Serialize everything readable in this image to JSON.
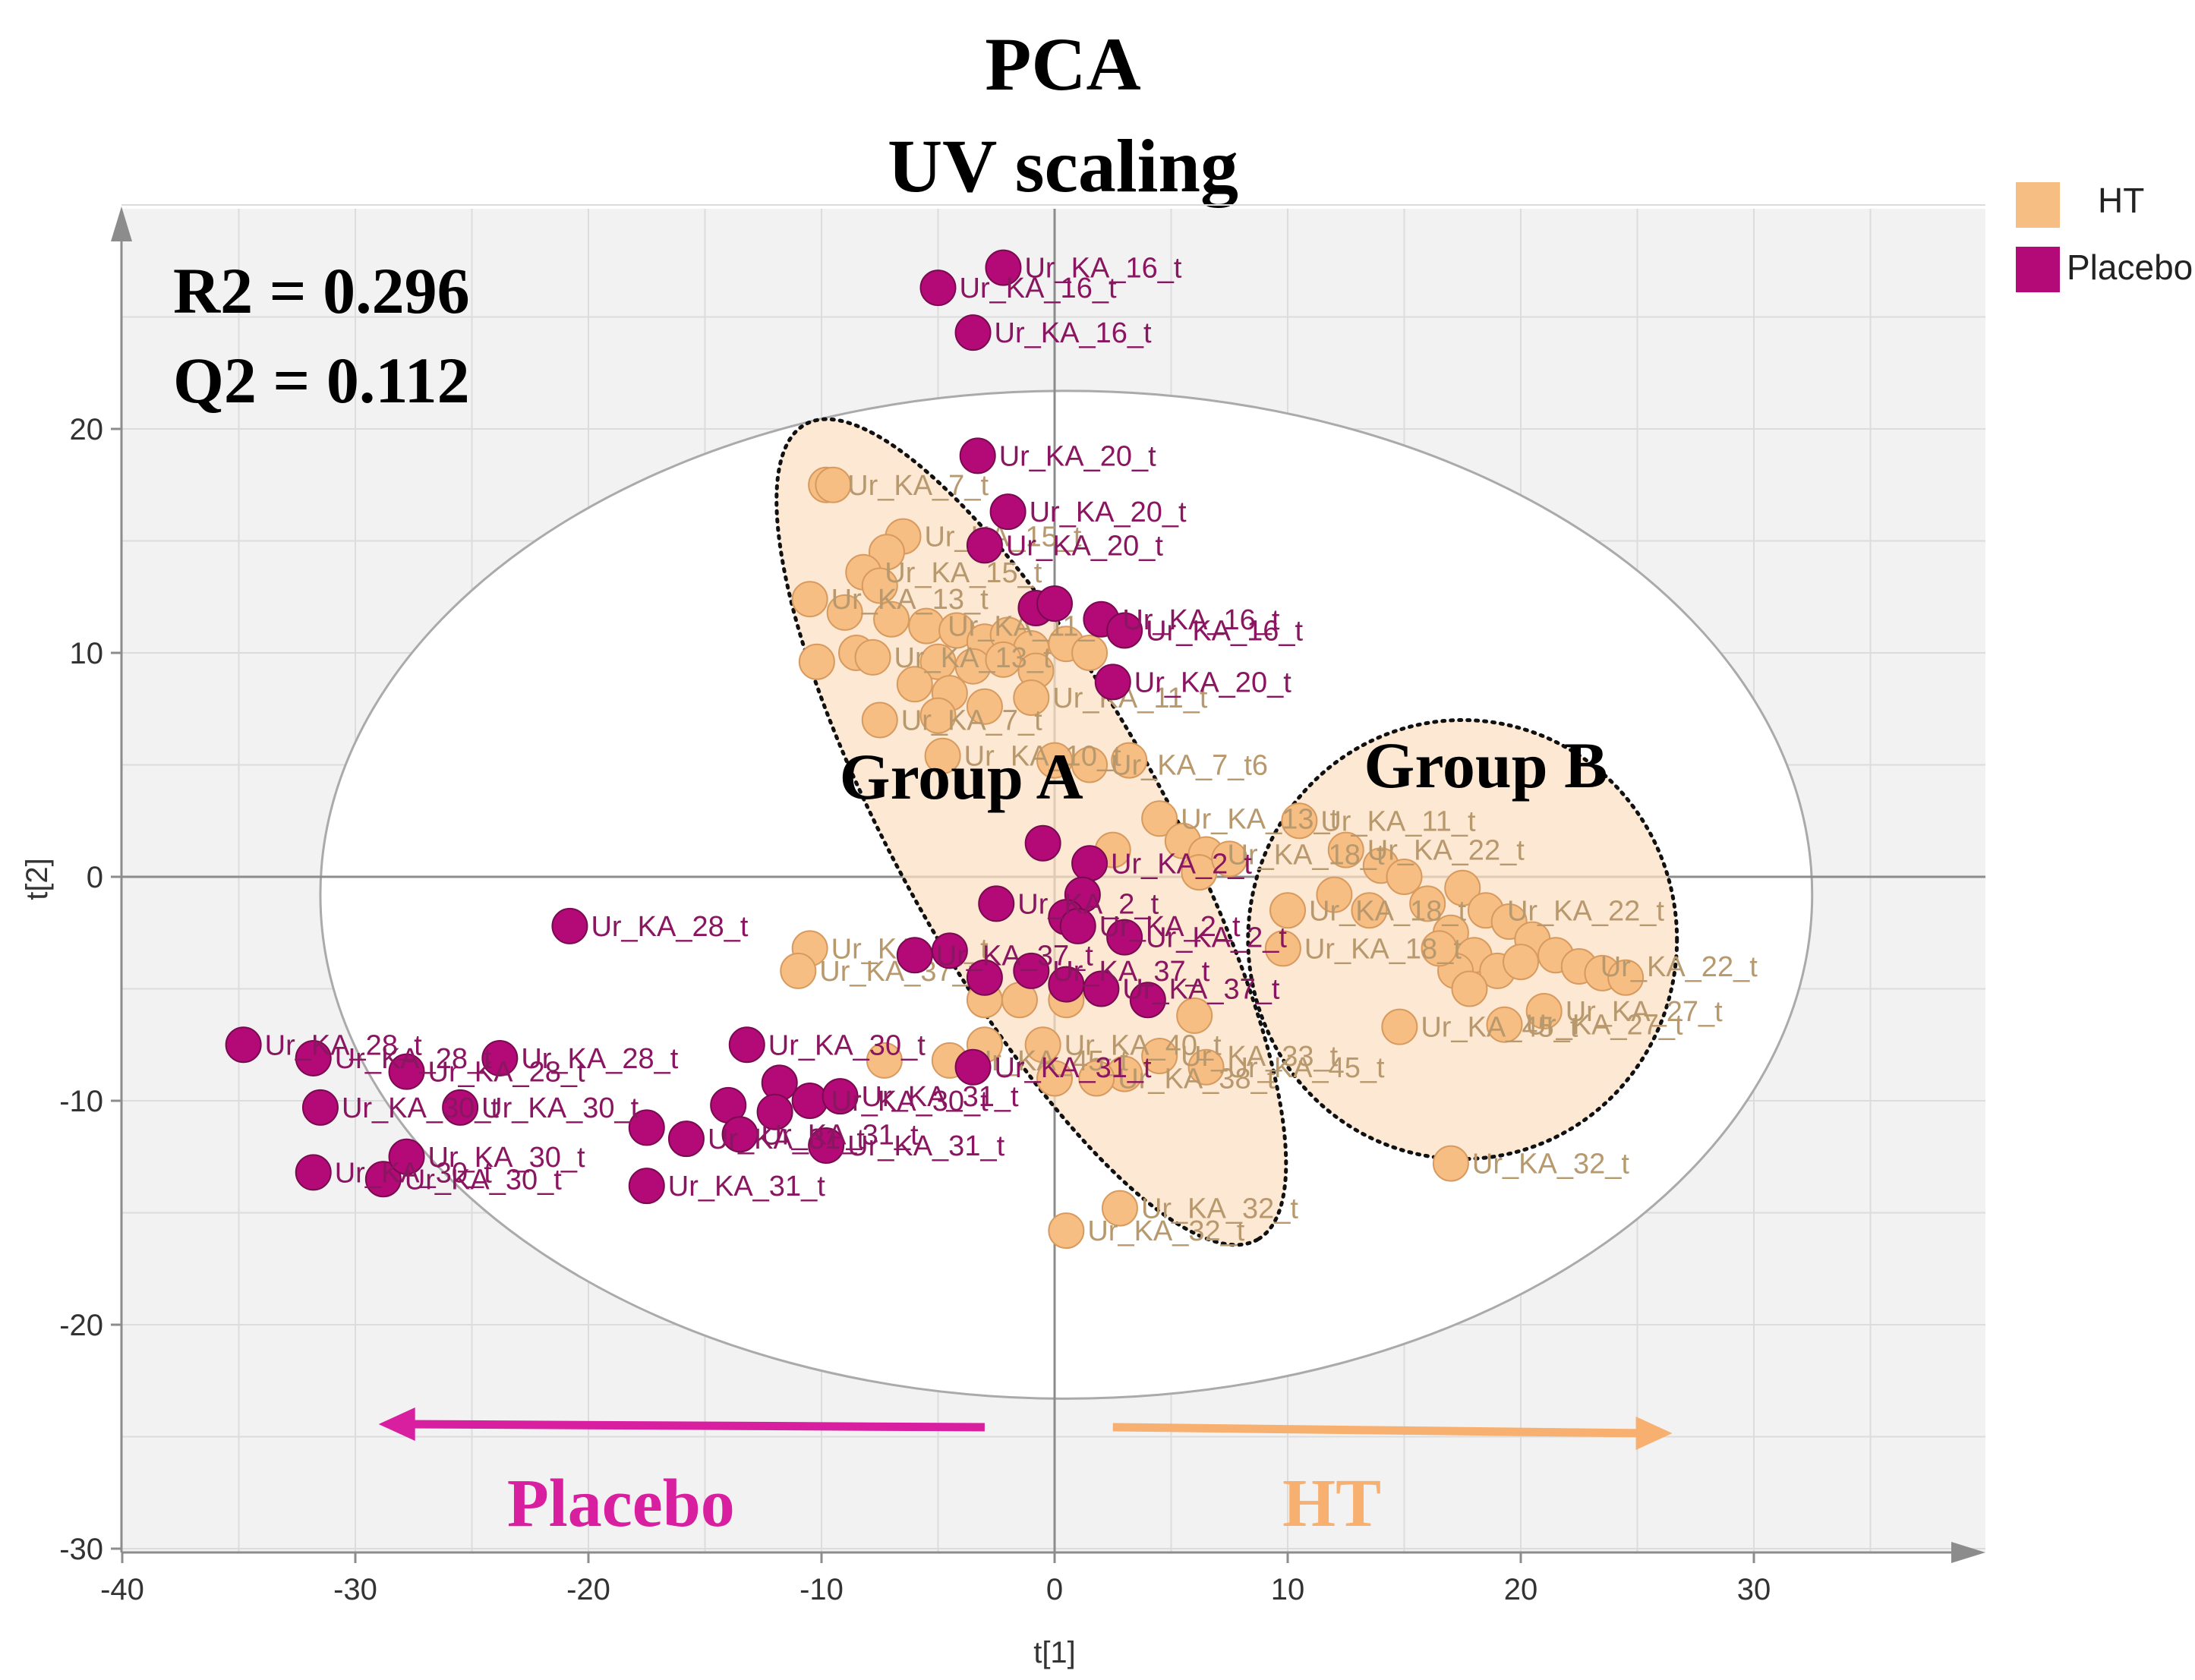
{
  "chart_data": {
    "type": "scatter",
    "title": "PCA",
    "subtitle": "UV scaling",
    "stats": {
      "r2": "R2 = 0.296",
      "q2": "Q2 = 0.112"
    },
    "xlabel": "t[1]",
    "ylabel": "t[2]",
    "xlim": [
      -40,
      40
    ],
    "ylim": [
      -30,
      30
    ],
    "xticks": [
      -40,
      -30,
      -20,
      -10,
      0,
      10,
      20,
      30
    ],
    "yticks": [
      -30,
      -20,
      -10,
      0,
      10,
      20
    ],
    "hotelling_ellipse": {
      "cx": 0.5,
      "cy": -0.8,
      "rx": 32,
      "ry": 22.5
    },
    "legend": [
      {
        "name": "HT",
        "color": "#f7be84"
      },
      {
        "name": "Placebo",
        "color": "#b30a78"
      }
    ],
    "groups": [
      {
        "label": "Group A",
        "x": -4,
        "y": 3.5,
        "region": {
          "cx": -1,
          "cy": 2,
          "rx": 20,
          "ry": 6,
          "angle_deg": 61
        }
      },
      {
        "label": "Group B",
        "x": 18.5,
        "y": 4,
        "region": {
          "cx": 17.5,
          "cy": -2.8,
          "rx": 9.2,
          "ry": 9.8,
          "angle_deg": 0
        }
      }
    ],
    "direction_arrows": [
      {
        "label": "Placebo",
        "from": -3,
        "to": -29,
        "color": "#d81fa0"
      },
      {
        "label": "HT",
        "from": 2.5,
        "to": 26.5,
        "color": "#f7b070"
      }
    ],
    "series": [
      {
        "name": "HT",
        "color": "#f7be84",
        "points": [
          {
            "x": -9.8,
            "y": 17.5,
            "label": "Ur_KA_7_t"
          },
          {
            "x": -9.5,
            "y": 17.5,
            "label": ""
          },
          {
            "x": -6.5,
            "y": 15.2,
            "label": "Ur_KA_15_t"
          },
          {
            "x": -7.2,
            "y": 14.5,
            "label": ""
          },
          {
            "x": -8.2,
            "y": 13.6,
            "label": "Ur_KA_15_t"
          },
          {
            "x": -7.5,
            "y": 13.0,
            "label": ""
          },
          {
            "x": -10.5,
            "y": 12.4,
            "label": "Ur_KA_13_t"
          },
          {
            "x": -9.0,
            "y": 11.8,
            "label": ""
          },
          {
            "x": -7.0,
            "y": 11.5,
            "label": ""
          },
          {
            "x": -5.5,
            "y": 11.2,
            "label": "Ur_KA_11_t"
          },
          {
            "x": -4.2,
            "y": 11.0,
            "label": ""
          },
          {
            "x": -3.0,
            "y": 10.5,
            "label": ""
          },
          {
            "x": -2.0,
            "y": 10.8,
            "label": ""
          },
          {
            "x": -1.0,
            "y": 10.2,
            "label": ""
          },
          {
            "x": 0.5,
            "y": 10.4,
            "label": ""
          },
          {
            "x": 1.5,
            "y": 10.0,
            "label": ""
          },
          {
            "x": -8.5,
            "y": 10.0,
            "label": ""
          },
          {
            "x": -7.8,
            "y": 9.8,
            "label": "Ur_KA_13_t"
          },
          {
            "x": -5.0,
            "y": 9.6,
            "label": ""
          },
          {
            "x": -3.5,
            "y": 9.4,
            "label": ""
          },
          {
            "x": -2.2,
            "y": 9.7,
            "label": ""
          },
          {
            "x": -0.8,
            "y": 9.2,
            "label": ""
          },
          {
            "x": -10.2,
            "y": 9.6,
            "label": ""
          },
          {
            "x": -6.0,
            "y": 8.6,
            "label": ""
          },
          {
            "x": -4.5,
            "y": 8.2,
            "label": ""
          },
          {
            "x": -1.0,
            "y": 8.0,
            "label": "Ur_KA_11_t"
          },
          {
            "x": -3.0,
            "y": 7.6,
            "label": ""
          },
          {
            "x": -7.5,
            "y": 7.0,
            "label": "Ur_KA_7_t"
          },
          {
            "x": -5.0,
            "y": 7.2,
            "label": ""
          },
          {
            "x": -4.8,
            "y": 5.4,
            "label": "Ur_KA_10_t"
          },
          {
            "x": 0.0,
            "y": 5.2,
            "label": ""
          },
          {
            "x": 1.5,
            "y": 5.0,
            "label": "Ur_KA_7_t6"
          },
          {
            "x": 3.2,
            "y": 5.2,
            "label": ""
          },
          {
            "x": 4.5,
            "y": 2.6,
            "label": "Ur_KA_13_t"
          },
          {
            "x": 5.5,
            "y": 1.6,
            "label": ""
          },
          {
            "x": 6.5,
            "y": 1.0,
            "label": "Ur_KA_18_t"
          },
          {
            "x": 2.5,
            "y": 1.2,
            "label": ""
          },
          {
            "x": 6.2,
            "y": 0.2,
            "label": ""
          },
          {
            "x": 7.5,
            "y": 0.8,
            "label": ""
          },
          {
            "x": 10.5,
            "y": 2.5,
            "label": "Ur_KA_11_t"
          },
          {
            "x": 12.5,
            "y": 1.2,
            "label": "Ur_KA_22_t"
          },
          {
            "x": 14.0,
            "y": 0.5,
            "label": ""
          },
          {
            "x": 15.0,
            "y": 0.0,
            "label": ""
          },
          {
            "x": 12.0,
            "y": -0.8,
            "label": ""
          },
          {
            "x": 13.5,
            "y": -1.5,
            "label": ""
          },
          {
            "x": 16.0,
            "y": -1.2,
            "label": ""
          },
          {
            "x": 17.5,
            "y": -0.5,
            "label": ""
          },
          {
            "x": 18.5,
            "y": -1.5,
            "label": "Ur_KA_22_t"
          },
          {
            "x": 19.5,
            "y": -2.0,
            "label": ""
          },
          {
            "x": 20.5,
            "y": -2.8,
            "label": ""
          },
          {
            "x": 21.5,
            "y": -3.5,
            "label": ""
          },
          {
            "x": 22.5,
            "y": -4.0,
            "label": "Ur_KA_22_t"
          },
          {
            "x": 17.0,
            "y": -2.5,
            "label": ""
          },
          {
            "x": 18.0,
            "y": -3.5,
            "label": ""
          },
          {
            "x": 19.0,
            "y": -4.2,
            "label": ""
          },
          {
            "x": 20.0,
            "y": -3.8,
            "label": ""
          },
          {
            "x": 23.5,
            "y": -4.3,
            "label": ""
          },
          {
            "x": 24.5,
            "y": -4.5,
            "label": ""
          },
          {
            "x": 17.2,
            "y": -4.2,
            "label": ""
          },
          {
            "x": 16.5,
            "y": -3.2,
            "label": ""
          },
          {
            "x": 17.8,
            "y": -5.0,
            "label": ""
          },
          {
            "x": 21.0,
            "y": -6.0,
            "label": "Ur_KA_27_t"
          },
          {
            "x": 19.3,
            "y": -6.6,
            "label": "Ur_KA_27_t"
          },
          {
            "x": 10.0,
            "y": -1.5,
            "label": "Ur_KA_18_t"
          },
          {
            "x": 9.8,
            "y": -3.2,
            "label": "Ur_KA_18_t"
          },
          {
            "x": 14.8,
            "y": -6.7,
            "label": "Ur_KA_45_t"
          },
          {
            "x": 6.0,
            "y": -6.2,
            "label": ""
          },
          {
            "x": 6.5,
            "y": -8.5,
            "label": "Ur_KA_45_t"
          },
          {
            "x": 4.5,
            "y": -8.0,
            "label": "Ur_KA_33_t"
          },
          {
            "x": 3.0,
            "y": -8.8,
            "label": ""
          },
          {
            "x": 1.8,
            "y": -9.0,
            "label": "Ur_KA_38_t"
          },
          {
            "x": 0.0,
            "y": -9.0,
            "label": ""
          },
          {
            "x": -0.5,
            "y": -7.5,
            "label": "Ur_KA_40_t"
          },
          {
            "x": -3.0,
            "y": -7.5,
            "label": ""
          },
          {
            "x": -4.5,
            "y": -8.2,
            "label": "Ur_KA_45_t"
          },
          {
            "x": -7.3,
            "y": -8.2,
            "label": ""
          },
          {
            "x": -3.0,
            "y": -5.5,
            "label": ""
          },
          {
            "x": -1.5,
            "y": -5.5,
            "label": ""
          },
          {
            "x": 0.5,
            "y": -5.5,
            "label": ""
          },
          {
            "x": -10.5,
            "y": -3.2,
            "label": "Ur_KA_37_t"
          },
          {
            "x": -11.0,
            "y": -4.2,
            "label": "Ur_KA_37_t"
          },
          {
            "x": 2.8,
            "y": -14.8,
            "label": "Ur_KA_32_t"
          },
          {
            "x": 0.5,
            "y": -15.8,
            "label": "Ur_KA_32_t"
          },
          {
            "x": 17.0,
            "y": -12.8,
            "label": "Ur_KA_32_t"
          }
        ]
      },
      {
        "name": "Placebo",
        "color": "#b30a78",
        "points": [
          {
            "x": -2.2,
            "y": 27.2,
            "label": "Ur_KA_16_t"
          },
          {
            "x": -5.0,
            "y": 26.3,
            "label": "Ur_KA_16_t"
          },
          {
            "x": -3.5,
            "y": 24.3,
            "label": "Ur_KA_16_t"
          },
          {
            "x": -3.3,
            "y": 18.8,
            "label": "Ur_KA_20_t"
          },
          {
            "x": -2.0,
            "y": 16.3,
            "label": "Ur_KA_20_t"
          },
          {
            "x": -3.0,
            "y": 14.8,
            "label": "Ur_KA_20_t"
          },
          {
            "x": -0.8,
            "y": 12.0,
            "label": ""
          },
          {
            "x": 0.0,
            "y": 12.2,
            "label": ""
          },
          {
            "x": 2.0,
            "y": 11.5,
            "label": "Ur_KA_16_t"
          },
          {
            "x": 3.0,
            "y": 11.0,
            "label": "Ur_KA_16_t"
          },
          {
            "x": 2.5,
            "y": 8.7,
            "label": "Ur_KA_20_t"
          },
          {
            "x": -0.5,
            "y": 1.5,
            "label": ""
          },
          {
            "x": 1.5,
            "y": 0.6,
            "label": "Ur_KA_2_t"
          },
          {
            "x": 1.2,
            "y": -0.8,
            "label": ""
          },
          {
            "x": -2.5,
            "y": -1.2,
            "label": "Ur_KA_2_t"
          },
          {
            "x": 0.5,
            "y": -1.8,
            "label": ""
          },
          {
            "x": 1.0,
            "y": -2.2,
            "label": "Ur_KA_2_t"
          },
          {
            "x": 3.0,
            "y": -2.7,
            "label": "Ur_KA_2_t"
          },
          {
            "x": -6.0,
            "y": -3.5,
            "label": "Ur_KA_37_t"
          },
          {
            "x": -4.5,
            "y": -3.3,
            "label": ""
          },
          {
            "x": -3.0,
            "y": -4.5,
            "label": ""
          },
          {
            "x": -1.0,
            "y": -4.2,
            "label": "Ur_KA_37_t"
          },
          {
            "x": 0.5,
            "y": -4.8,
            "label": ""
          },
          {
            "x": 2.0,
            "y": -5.0,
            "label": "Ur_KA_37_t"
          },
          {
            "x": 4.0,
            "y": -5.5,
            "label": ""
          },
          {
            "x": -20.8,
            "y": -2.2,
            "label": "Ur_KA_28_t"
          },
          {
            "x": -34.8,
            "y": -7.5,
            "label": "Ur_KA_28_t"
          },
          {
            "x": -31.8,
            "y": -8.1,
            "label": "Ur_KA_28_t"
          },
          {
            "x": -27.8,
            "y": -8.7,
            "label": "Ur_KA_28_t"
          },
          {
            "x": -23.8,
            "y": -8.1,
            "label": "Ur_KA_28_t"
          },
          {
            "x": -31.5,
            "y": -10.3,
            "label": "Ur_KA_30_t"
          },
          {
            "x": -25.5,
            "y": -10.3,
            "label": "Ur_KA_30_t"
          },
          {
            "x": -31.8,
            "y": -13.2,
            "label": "Ur_KA_30_t"
          },
          {
            "x": -28.8,
            "y": -13.5,
            "label": "Ur_KA_30_t"
          },
          {
            "x": -27.8,
            "y": -12.5,
            "label": "Ur_KA_30_t"
          },
          {
            "x": -13.2,
            "y": -7.5,
            "label": "Ur_KA_30_t"
          },
          {
            "x": -11.8,
            "y": -9.2,
            "label": ""
          },
          {
            "x": -10.5,
            "y": -10.0,
            "label": "Ur_KA_30_t"
          },
          {
            "x": -9.2,
            "y": -9.8,
            "label": "Ur_KA_31_t"
          },
          {
            "x": -14.0,
            "y": -10.2,
            "label": ""
          },
          {
            "x": -12.0,
            "y": -10.5,
            "label": ""
          },
          {
            "x": -13.5,
            "y": -11.5,
            "label": "Ur_KA_31_t"
          },
          {
            "x": -17.5,
            "y": -11.2,
            "label": ""
          },
          {
            "x": -15.8,
            "y": -11.7,
            "label": "Ur_KA_31_t"
          },
          {
            "x": -9.8,
            "y": -12.0,
            "label": "Ur_KA_31_t"
          },
          {
            "x": -17.5,
            "y": -13.8,
            "label": "Ur_KA_31_t"
          },
          {
            "x": -3.5,
            "y": -8.5,
            "label": "Ur_KA_31_t"
          }
        ]
      }
    ]
  }
}
